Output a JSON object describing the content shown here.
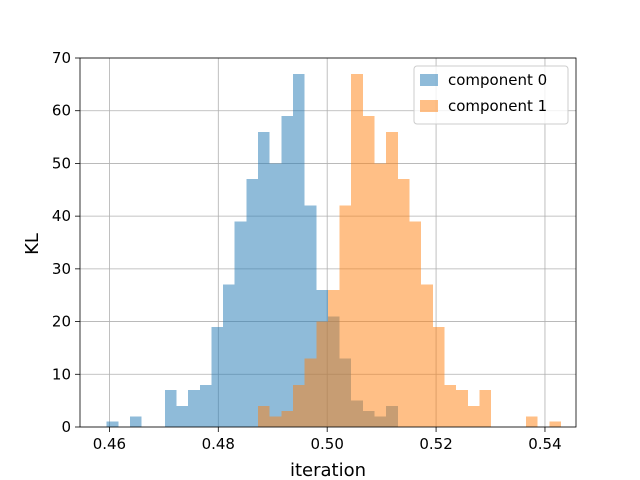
{
  "chart_data": {
    "type": "bar",
    "subtype": "overlapping-histogram",
    "title": "",
    "xlabel": "iteration",
    "ylabel": "KL",
    "xlim": [
      0.4546,
      0.5457
    ],
    "ylim": [
      0,
      70
    ],
    "xticks": [
      0.46,
      0.48,
      0.5,
      0.52,
      0.54
    ],
    "xtick_labels": [
      "0.46",
      "0.48",
      "0.50",
      "0.52",
      "0.54"
    ],
    "yticks": [
      0,
      10,
      20,
      30,
      40,
      50,
      60,
      70
    ],
    "ytick_labels": [
      "0",
      "10",
      "20",
      "30",
      "40",
      "50",
      "60",
      "70"
    ],
    "grid": true,
    "legend_position": "top-right",
    "series": [
      {
        "name": "component 0",
        "color": "#1f77b4",
        "alpha": 0.5,
        "bin_width": 0.00214,
        "bins": [
          {
            "x0": 0.4595,
            "count": 1
          },
          {
            "x0": 0.46378,
            "count": 2
          },
          {
            "x0": 0.47018,
            "count": 7
          },
          {
            "x0": 0.47232,
            "count": 4
          },
          {
            "x0": 0.47446,
            "count": 7
          },
          {
            "x0": 0.4766,
            "count": 8
          },
          {
            "x0": 0.47874,
            "count": 19
          },
          {
            "x0": 0.48088,
            "count": 27
          },
          {
            "x0": 0.48302,
            "count": 39
          },
          {
            "x0": 0.48516,
            "count": 47
          },
          {
            "x0": 0.4873,
            "count": 56
          },
          {
            "x0": 0.48944,
            "count": 50
          },
          {
            "x0": 0.49158,
            "count": 59
          },
          {
            "x0": 0.49372,
            "count": 67
          },
          {
            "x0": 0.49586,
            "count": 42
          },
          {
            "x0": 0.498,
            "count": 26
          },
          {
            "x0": 0.50014,
            "count": 21
          },
          {
            "x0": 0.50228,
            "count": 13
          },
          {
            "x0": 0.50442,
            "count": 5
          },
          {
            "x0": 0.50656,
            "count": 3
          },
          {
            "x0": 0.5087,
            "count": 2
          },
          {
            "x0": 0.51084,
            "count": 4
          }
        ]
      },
      {
        "name": "component 1",
        "color": "#ff7f0e",
        "alpha": 0.5,
        "bin_width": 0.00214,
        "bins": [
          {
            "x0": 0.4873,
            "count": 4
          },
          {
            "x0": 0.48944,
            "count": 2
          },
          {
            "x0": 0.49158,
            "count": 3
          },
          {
            "x0": 0.49372,
            "count": 8
          },
          {
            "x0": 0.49586,
            "count": 13
          },
          {
            "x0": 0.498,
            "count": 20
          },
          {
            "x0": 0.50014,
            "count": 26
          },
          {
            "x0": 0.50228,
            "count": 42
          },
          {
            "x0": 0.50442,
            "count": 67
          },
          {
            "x0": 0.50656,
            "count": 59
          },
          {
            "x0": 0.5087,
            "count": 50
          },
          {
            "x0": 0.51084,
            "count": 56
          },
          {
            "x0": 0.51298,
            "count": 47
          },
          {
            "x0": 0.51512,
            "count": 39
          },
          {
            "x0": 0.51726,
            "count": 27
          },
          {
            "x0": 0.5194,
            "count": 19
          },
          {
            "x0": 0.52154,
            "count": 8
          },
          {
            "x0": 0.52368,
            "count": 7
          },
          {
            "x0": 0.52582,
            "count": 4
          },
          {
            "x0": 0.52796,
            "count": 7
          },
          {
            "x0": 0.53652,
            "count": 2
          },
          {
            "x0": 0.5408,
            "count": 1
          }
        ]
      }
    ]
  }
}
